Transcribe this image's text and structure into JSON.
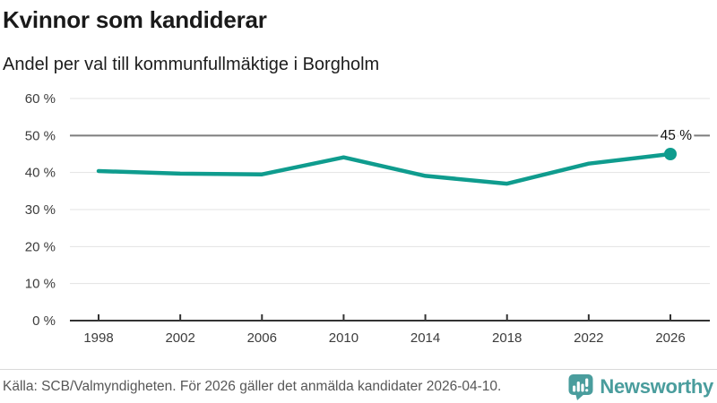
{
  "header": {
    "title": "Kvinnor som kandiderar",
    "subtitle": "Andel per val till kommunfullmäktige i Borgholm"
  },
  "chart_data": {
    "type": "line",
    "title": "Kvinnor som kandiderar",
    "subtitle": "Andel per val till kommunfullmäktige i Borgholm",
    "x": [
      1998,
      2002,
      2006,
      2010,
      2014,
      2018,
      2022,
      2026
    ],
    "values": [
      40.4,
      39.7,
      39.5,
      44.1,
      39.1,
      37.0,
      42.4,
      45
    ],
    "ylim": [
      0,
      60
    ],
    "yticks": [
      0,
      10,
      20,
      30,
      40,
      50,
      60
    ],
    "ytick_suffix": " %",
    "grid": true,
    "legend": "none",
    "reference_line": {
      "value": 50
    },
    "end_point": {
      "x": 2026,
      "value": 45,
      "label": "45 %"
    },
    "line_color": "#0f9c8e"
  },
  "footer": {
    "source": "Källa: SCB/Valmyndigheten. För 2026 gäller det anmälda kandidater 2026-04-10.",
    "logo": {
      "text": "Newsworthy",
      "color": "#4a9d9d",
      "icon": "newsworthy-bubble-chart-icon"
    }
  }
}
